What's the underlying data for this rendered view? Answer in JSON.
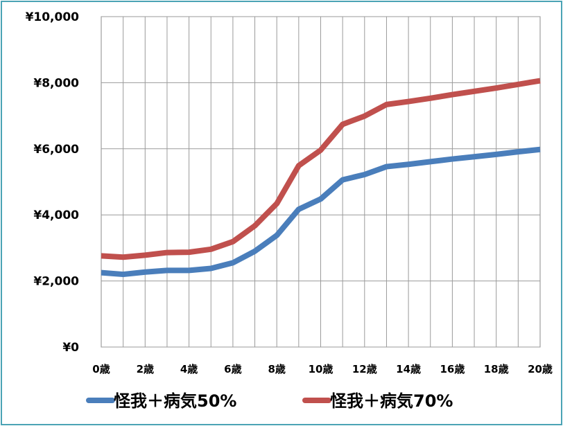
{
  "chart_data": {
    "type": "line",
    "x": [
      0,
      1,
      2,
      3,
      4,
      5,
      6,
      7,
      8,
      9,
      10,
      11,
      12,
      13,
      14,
      15,
      16,
      17,
      18,
      19,
      20
    ],
    "x_tick_labels": [
      "0歳",
      "2歳",
      "4歳",
      "6歳",
      "8歳",
      "10歳",
      "12歳",
      "14歳",
      "16歳",
      "18歳",
      "20歳"
    ],
    "x_tick_values": [
      0,
      2,
      4,
      6,
      8,
      10,
      12,
      14,
      16,
      18,
      20
    ],
    "y_tick_labels": [
      "¥0",
      "¥2,000",
      "¥4,000",
      "¥6,000",
      "¥8,000",
      "¥10,000"
    ],
    "y_tick_values": [
      0,
      2000,
      4000,
      6000,
      8000,
      10000
    ],
    "ylim": [
      0,
      10000
    ],
    "xlim": [
      0,
      20
    ],
    "grid": true,
    "legend_position": "bottom",
    "series": [
      {
        "name": "怪我＋病気50%",
        "color": "#4a7ebb",
        "values": [
          2250,
          2200,
          2270,
          2320,
          2320,
          2380,
          2550,
          2900,
          3380,
          4170,
          4480,
          5060,
          5220,
          5460,
          5530,
          5610,
          5690,
          5760,
          5830,
          5910,
          5980
        ]
      },
      {
        "name": "怪我＋病気70%",
        "color": "#c0504d",
        "values": [
          2760,
          2720,
          2780,
          2860,
          2870,
          2960,
          3190,
          3670,
          4340,
          5490,
          5960,
          6740,
          6990,
          7340,
          7430,
          7530,
          7640,
          7740,
          7840,
          7950,
          8060
        ]
      }
    ]
  }
}
